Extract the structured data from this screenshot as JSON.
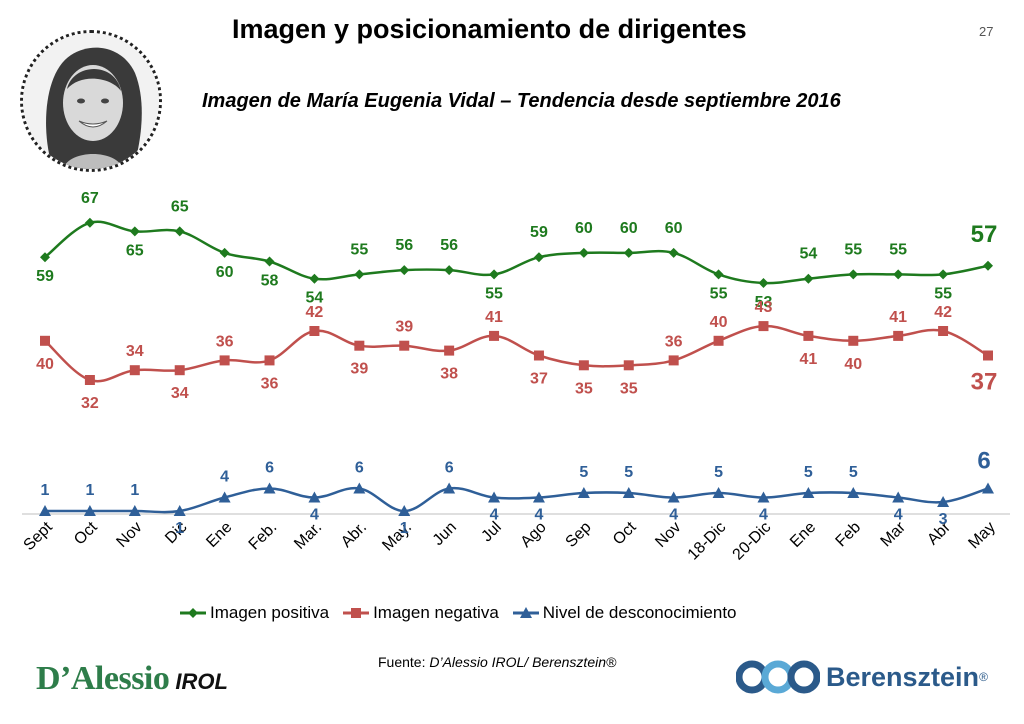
{
  "page": {
    "title": "Imagen y posicionamiento de dirigentes",
    "page_number": "27",
    "subtitle": "Imagen de María Eugenia Vidal – Tendencia desde septiembre 2016",
    "source_prefix": "Fuente: ",
    "source_text": "D’Alessio IROL/ Berensztein®",
    "logo_left_main": "D’Alessio",
    "logo_left_sub": "IROL",
    "logo_right": "Berensztein",
    "logo_right_mark": "®"
  },
  "colors": {
    "positive": "#1e7a1e",
    "negative": "#c0504d",
    "unknown": "#2f5f98",
    "brand_green": "#2e7d4a",
    "brand_blue": "#2b5a8a"
  },
  "legend": {
    "positive": "Imagen positiva",
    "negative": "Imagen negativa",
    "unknown": "Nivel de desconocimiento"
  },
  "chart_data": {
    "type": "line",
    "categories": [
      "Sept",
      "Oct",
      "Nov",
      "Dic",
      "Ene",
      "Feb.",
      "Mar.",
      "Abr.",
      "May.",
      "Jun",
      "Jul",
      "Ago",
      "Sep",
      "Oct",
      "Nov",
      "18-Dic",
      "20-Dic",
      "Ene",
      "Feb",
      "Mar",
      "Abr",
      "May"
    ],
    "series": [
      {
        "key": "positive",
        "name": "Imagen positiva",
        "values": [
          59,
          67,
          65,
          65,
          60,
          58,
          54,
          55,
          56,
          56,
          55,
          59,
          60,
          60,
          60,
          55,
          53,
          54,
          55,
          55,
          55,
          57
        ]
      },
      {
        "key": "negative",
        "name": "Imagen negativa",
        "values": [
          40,
          32,
          34,
          34,
          36,
          36,
          42,
          39,
          39,
          38,
          41,
          37,
          35,
          35,
          36,
          40,
          43,
          41,
          40,
          41,
          42,
          37
        ]
      },
      {
        "key": "unknown",
        "name": "Nivel de desconocimiento",
        "values": [
          1,
          1,
          1,
          1,
          4,
          6,
          4,
          6,
          1,
          6,
          4,
          4,
          5,
          5,
          4,
          5,
          4,
          5,
          5,
          4,
          3,
          6
        ]
      }
    ],
    "legend_position": "bottom",
    "grid": false,
    "last_value_emphasized": true
  }
}
